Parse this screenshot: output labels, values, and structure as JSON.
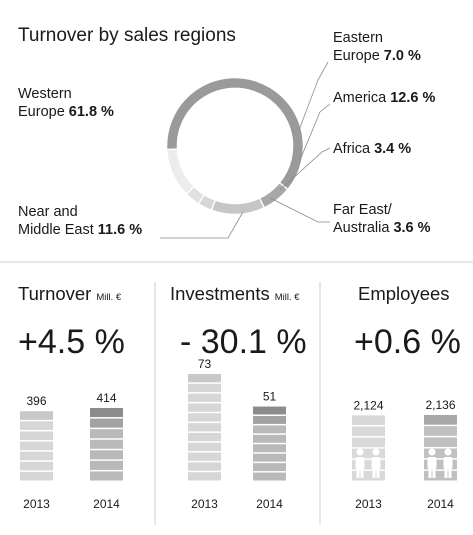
{
  "chart_data": [
    {
      "type": "pie",
      "title": "Turnover by sales regions",
      "slices": [
        {
          "name": "Western Europe",
          "label_lines": [
            "Western",
            "Europe"
          ],
          "value_label": "61.8 %",
          "value": 61.8,
          "color": "#9a9a9a"
        },
        {
          "name": "Eastern Europe",
          "label_lines": [
            "Eastern",
            "Europe"
          ],
          "value_label": "7.0 %",
          "value": 7.0,
          "color": "#a8a8a8"
        },
        {
          "name": "America",
          "label_lines": [
            "America"
          ],
          "value_label": "12.6 %",
          "value": 12.6,
          "color": "#c6c6c6"
        },
        {
          "name": "Africa",
          "label_lines": [
            "Africa"
          ],
          "value_label": "3.4 %",
          "value": 3.4,
          "color": "#d6d6d6"
        },
        {
          "name": "Far East/ Australia",
          "label_lines": [
            "Far East/",
            "Australia"
          ],
          "value_label": "3.6 %",
          "value": 3.6,
          "color": "#e0e0e0"
        },
        {
          "name": "Near and Middle East",
          "label_lines": [
            "Near and",
            "Middle East"
          ],
          "value_label": "11.6 %",
          "value": 11.6,
          "color": "#ececec"
        }
      ]
    },
    {
      "type": "bar",
      "title": "Turnover",
      "unit": "Mill. €",
      "change": "+4.5 %",
      "categories": [
        "2013",
        "2014"
      ],
      "values": [
        396,
        414
      ],
      "value_labels": [
        "396",
        "414"
      ]
    },
    {
      "type": "bar",
      "title": "Investments",
      "unit": "Mill. €",
      "change": "- 30.1 %",
      "categories": [
        "2013",
        "2014"
      ],
      "values": [
        73,
        51
      ],
      "value_labels": [
        "73",
        "51"
      ]
    },
    {
      "type": "bar",
      "title": "Employees",
      "unit": "",
      "change": "+0.6 %",
      "categories": [
        "2013",
        "2014"
      ],
      "values": [
        2124,
        2136
      ],
      "value_labels": [
        "2,124",
        "2,136"
      ]
    }
  ]
}
